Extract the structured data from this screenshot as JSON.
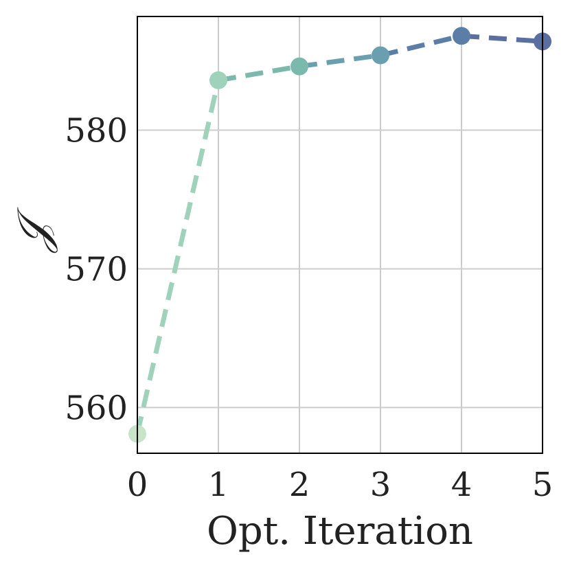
{
  "chart_data": {
    "type": "line",
    "xlabel": "Opt. Iteration",
    "ylabel": "𝒥",
    "x": [
      0,
      1,
      2,
      3,
      4,
      5
    ],
    "values": [
      558.1,
      583.6,
      584.6,
      585.4,
      586.8,
      586.4
    ],
    "xlim": [
      0,
      5
    ],
    "ylim": [
      556.7,
      588.2
    ],
    "xticks": [
      "0",
      "1",
      "2",
      "3",
      "4",
      "5"
    ],
    "yticks": [
      560,
      570,
      580
    ],
    "ytick_labels": [
      "560",
      "570",
      "580"
    ],
    "grid": true,
    "line_style": "dashed",
    "point_colors": [
      "#c7e4c8",
      "#9fd2bb",
      "#7bb9ad",
      "#6a9fb0",
      "#5b7ea7",
      "#5a6fa0"
    ],
    "grid_color": "#cccccc",
    "frame_color": "#000000"
  }
}
